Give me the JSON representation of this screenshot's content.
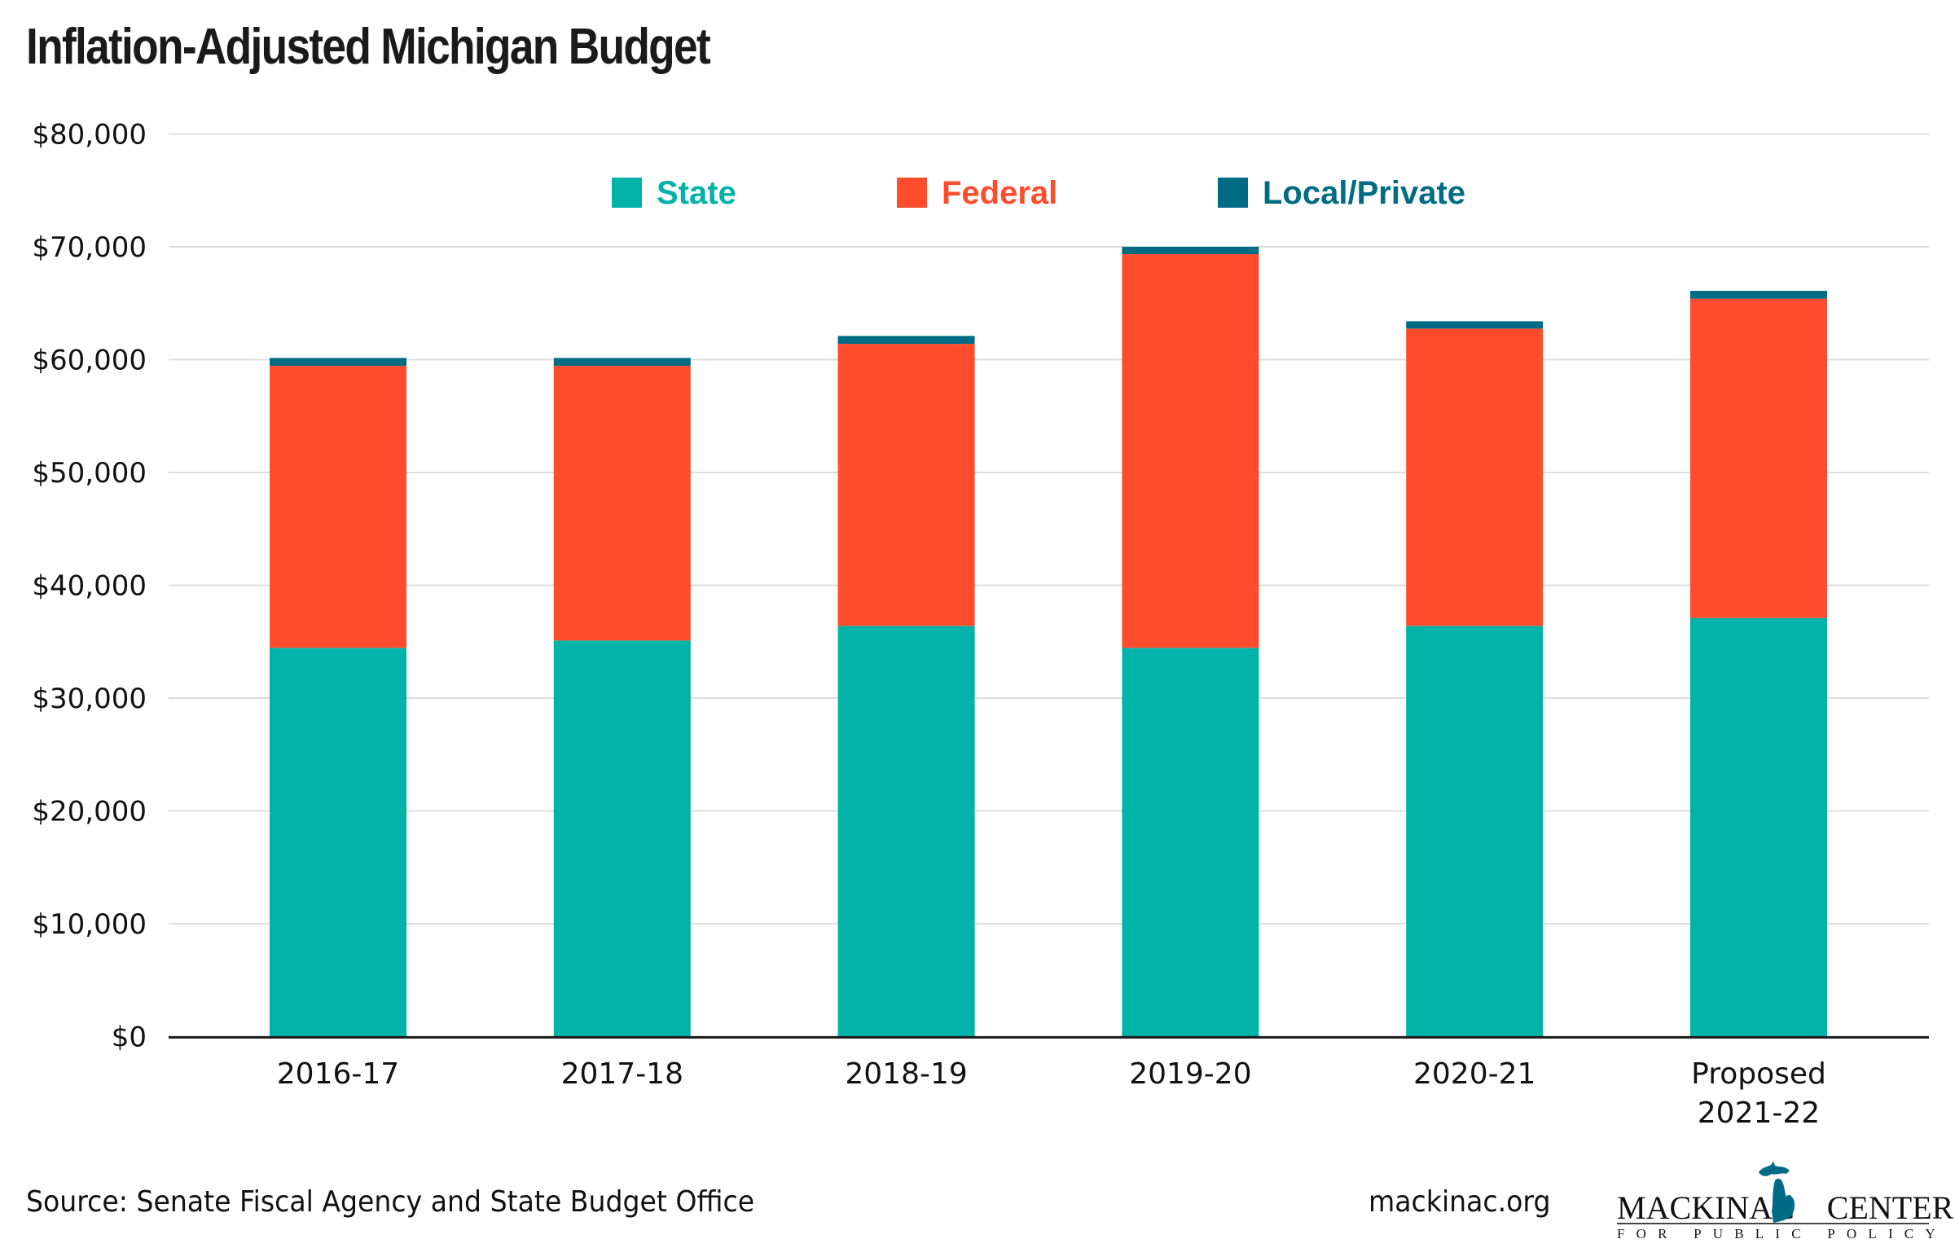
{
  "title": "Inflation-Adjusted Michigan Budget",
  "footer": {
    "source": "Source: Senate Fiscal Agency and State Budget Office",
    "website": "mackinac.org",
    "logo": {
      "name_left": "MACKINAC",
      "name_right": "CENTER",
      "tagline": "FOR PUBLIC POLICY",
      "icon": "michigan-map-icon"
    }
  },
  "colors": {
    "state": "#00B3A8",
    "federal": "#FF4C2C",
    "local_private": "#006B85",
    "gridline": "#DDDDDD",
    "axis": "#1a1a1a"
  },
  "chart_data": {
    "type": "bar",
    "stacked": true,
    "title": "Inflation-Adjusted Michigan Budget",
    "xlabel": "",
    "ylabel": "",
    "categories": [
      [
        "2016-17"
      ],
      [
        "2017-18"
      ],
      [
        "2018-19"
      ],
      [
        "2019-20"
      ],
      [
        "2020-21"
      ],
      [
        "Proposed",
        "2021-22"
      ]
    ],
    "series": [
      {
        "name": "State",
        "color": "#00B3A8",
        "values": [
          34450,
          35100,
          36400,
          34450,
          36400,
          37100
        ]
      },
      {
        "name": "Federal",
        "color": "#FF4C2C",
        "values": [
          25000,
          24350,
          25000,
          34900,
          26350,
          28300
        ]
      },
      {
        "name": "Local/Private",
        "color": "#006B85",
        "values": [
          700,
          700,
          700,
          650,
          650,
          700
        ]
      }
    ],
    "ylim": [
      0,
      80000
    ],
    "yticks": [
      0,
      10000,
      20000,
      30000,
      40000,
      50000,
      60000,
      70000,
      80000
    ],
    "ytick_labels": [
      "$0",
      "$10,000",
      "$20,000",
      "$30,000",
      "$40,000",
      "$50,000",
      "$60,000",
      "$70,000",
      "$80,000"
    ],
    "grid": true,
    "legend": {
      "placement": "top-center",
      "orientation": "horizontal",
      "entries": [
        "State",
        "Federal",
        "Local/Private"
      ]
    }
  }
}
